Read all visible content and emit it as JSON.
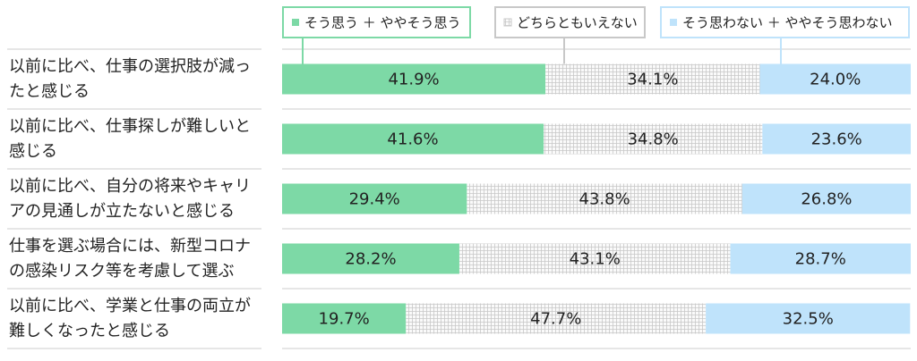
{
  "chart_data": {
    "type": "stacked-bar",
    "categories": [
      "以前に比べ、仕事の選択肢が減ったと感じる",
      "以前に比べ、仕事探しが難しいと感じる",
      "以前に比べ、自分の将来やキャリアの見通しが立たないと感じる",
      "仕事を選ぶ場合には、新型コロナの感染リスク等を考慮して選ぶ",
      "以前に比べ、学業と仕事の両立が難しくなったと感じる"
    ],
    "xlim": [
      0,
      100
    ],
    "series": [
      {
        "name": "そう思う ＋ ややそう思う",
        "color": "#7dd9a6",
        "values": [
          41.9,
          41.6,
          29.4,
          28.2,
          19.7
        ],
        "value_labels": [
          "41.9%",
          "41.6%",
          "29.4%",
          "28.2%",
          "19.7%"
        ]
      },
      {
        "name": "どちらともいえない",
        "color": "#c8c8c8",
        "pattern": "grid",
        "values": [
          34.1,
          34.8,
          43.8,
          43.1,
          47.7
        ],
        "value_labels": [
          "34.1%",
          "34.8%",
          "43.8%",
          "43.1%",
          "47.7%"
        ]
      },
      {
        "name": "そう思わない ＋ ややそう思わない",
        "color": "#bfe3fb",
        "values": [
          24.0,
          23.6,
          26.8,
          28.7,
          32.5
        ],
        "value_labels": [
          "24.0%",
          "23.6%",
          "26.8%",
          "28.7%",
          "32.5%"
        ]
      }
    ]
  }
}
